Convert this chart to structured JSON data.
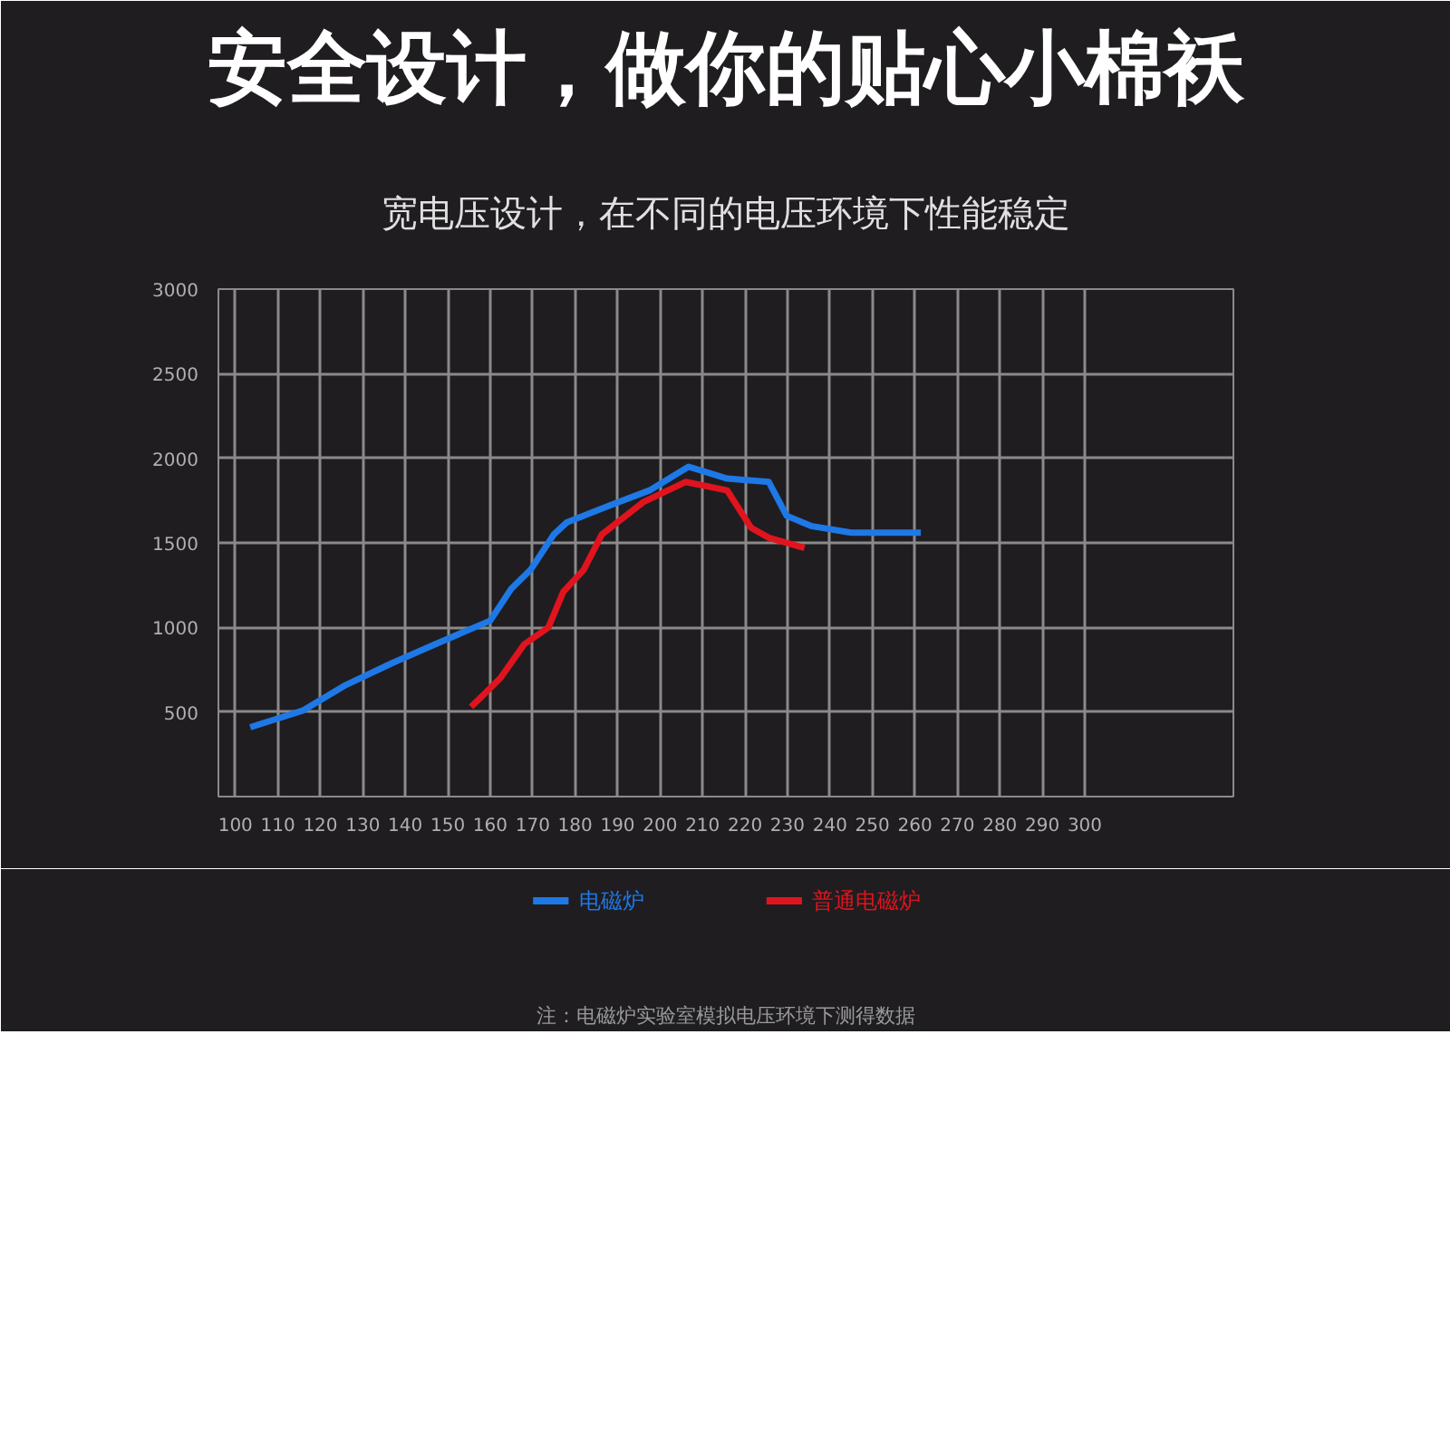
{
  "chart_data": {
    "type": "line",
    "title": "安全设计，做你的贴心小棉袄",
    "subtitle": "宽电压设计，在不同的电压环境下性能稳定",
    "x": [
      103.5,
      116,
      126,
      137,
      147,
      160,
      165,
      169.5,
      175,
      178,
      188,
      197.5,
      206.7,
      215.8,
      225.6,
      229.8,
      235.5,
      245,
      261.4
    ],
    "series": [
      {
        "name": "电磁炉",
        "color": "#1e78e6",
        "values": [
          410,
          510,
          660,
          790,
          900,
          1040,
          1230,
          1340,
          1550,
          1620,
          1720,
          1810,
          1950,
          1880,
          1860,
          1660,
          1600,
          1560,
          1560
        ]
      },
      {
        "name": "普通电磁炉",
        "color": "#e0141e",
        "x": [
          155.5,
          162.4,
          168,
          173.7,
          177.2,
          182,
          186.3,
          196,
          206,
          215.8,
          221.4,
          225.6,
          234
        ],
        "values": [
          530,
          700,
          900,
          1000,
          1210,
          1340,
          1550,
          1740,
          1860,
          1810,
          1590,
          1530,
          1470
        ]
      }
    ],
    "xlim": [
      96,
      335
    ],
    "ylim": [
      0,
      3000
    ],
    "xticks": [
      100,
      110,
      120,
      130,
      140,
      150,
      160,
      170,
      180,
      190,
      200,
      210,
      220,
      230,
      240,
      250,
      260,
      270,
      280,
      290,
      300
    ],
    "yticks": [
      {
        "value": 0,
        "label": null
      },
      500,
      1000,
      1500,
      2000,
      2500,
      3000
    ],
    "grid": true,
    "legend": "bottom",
    "marker": "none",
    "line_style": "solid",
    "annotations": [
      "注：电磁炉实验室模拟电压环境下测得数据"
    ]
  }
}
